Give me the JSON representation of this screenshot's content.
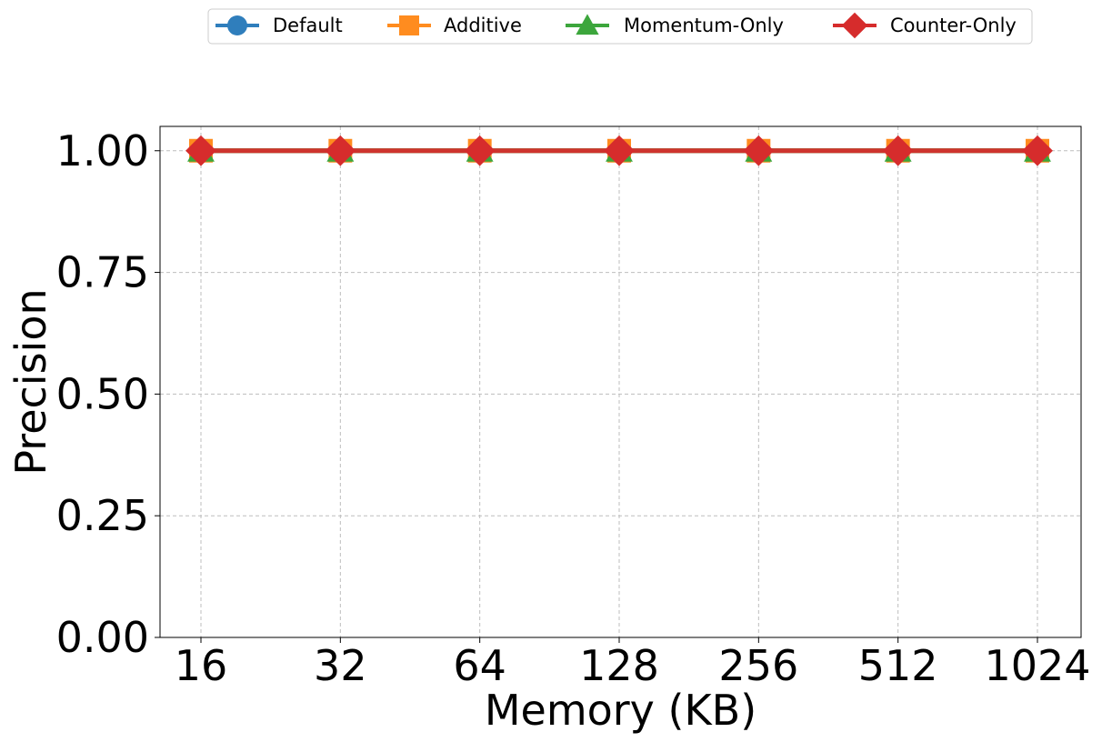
{
  "chart_data": {
    "type": "line",
    "xlabel": "Memory (KB)",
    "ylabel": "Precision",
    "categories": [
      "16",
      "32",
      "64",
      "128",
      "256",
      "512",
      "1024"
    ],
    "ylim": [
      0,
      1.05
    ],
    "yticks": [
      "0.00",
      "0.25",
      "0.50",
      "0.75",
      "1.00"
    ],
    "ytick_values": [
      0,
      0.25,
      0.5,
      0.75,
      1.0
    ],
    "grid": true,
    "legend_position": "top-center",
    "series": [
      {
        "name": "Default",
        "values": [
          1.0,
          1.0,
          1.0,
          1.0,
          1.0,
          1.0,
          1.0
        ],
        "color": "#2f7ebc",
        "marker": "circle"
      },
      {
        "name": "Additive",
        "values": [
          1.0,
          1.0,
          1.0,
          1.0,
          1.0,
          1.0,
          1.0
        ],
        "color": "#ff8c1f",
        "marker": "square"
      },
      {
        "name": "Momentum-Only",
        "values": [
          1.0,
          1.0,
          1.0,
          1.0,
          1.0,
          1.0,
          1.0
        ],
        "color": "#3ca63c",
        "marker": "triangle"
      },
      {
        "name": "Counter-Only",
        "values": [
          1.0,
          1.0,
          1.0,
          1.0,
          1.0,
          1.0,
          1.0
        ],
        "color": "#d62c2c",
        "marker": "diamond"
      }
    ]
  }
}
